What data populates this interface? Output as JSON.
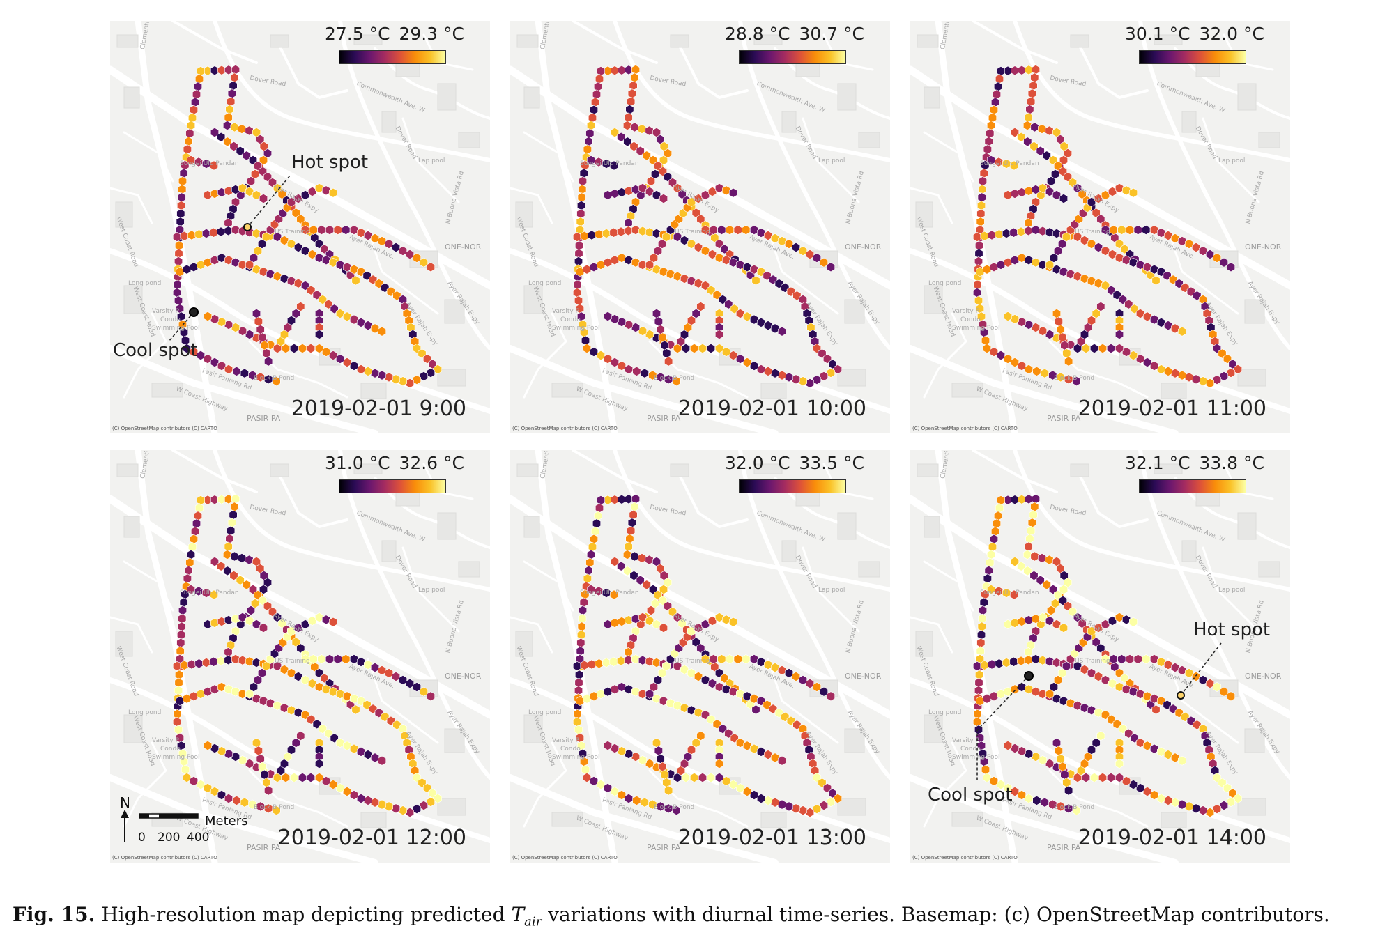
{
  "panels": [
    {
      "timestamp": "2019-02-01 9:00",
      "colorbar": {
        "min": "27.5 °C",
        "max": "29.3 °C"
      }
    },
    {
      "timestamp": "2019-02-01 10:00",
      "colorbar": {
        "min": "28.8 °C",
        "max": "30.7 °C"
      }
    },
    {
      "timestamp": "2019-02-01 11:00",
      "colorbar": {
        "min": "30.1 °C",
        "max": "32.0 °C"
      }
    },
    {
      "timestamp": "2019-02-01 12:00",
      "colorbar": {
        "min": "31.0 °C",
        "max": "32.6 °C"
      }
    },
    {
      "timestamp": "2019-02-01 13:00",
      "colorbar": {
        "min": "32.0 °C",
        "max": "33.5 °C"
      }
    },
    {
      "timestamp": "2019-02-01 14:00",
      "colorbar": {
        "min": "32.1 °C",
        "max": "33.8 °C"
      }
    }
  ],
  "annotations": {
    "hot_spot": "Hot spot",
    "cool_spot": "Cool spot"
  },
  "basemap": {
    "credit": "(C) OpenStreetMap contributors (C) CARTO",
    "streets": {
      "clementi": "Clementi",
      "dover_road": "Dover Road",
      "commonwealth": "Commonwealth Ave. W",
      "sungei": "Sungei Ulu Pandan",
      "lap_pool": "Lap pool",
      "ayer_rajah_expy": "Ayer Rajah Expy",
      "buona_vista": "N Buona Vista Rd",
      "us_training": "US Training",
      "ayer_rajah_ave": "Ayer Rajah Ave.",
      "one_north": "ONE-NOR",
      "west_coast_road": "West Coast Road",
      "long_pond": "Long pond",
      "varsity": "Varsity P",
      "condo": "Condo",
      "swimming_pool": "Swimming Pool",
      "pasir_panjang_rd": "Pasir Panjang Rd",
      "block_b_pond": "Block B Pond",
      "w_coast_highway": "W Coast Highway",
      "pasir_panjang": "PASIR PA"
    }
  },
  "scalebar": {
    "north": "N",
    "units": "Meters",
    "ticks": [
      "0",
      "200",
      "400"
    ]
  },
  "caption": {
    "label": "Fig. 15.",
    "text_before": "High-resolution map depicting predicted",
    "var_main": "T",
    "var_sub": "air",
    "text_after": "variations with diurnal time-series. Basemap: (c) OpenStreetMap contributors."
  },
  "colormap": [
    "#000004",
    "#2b0b55",
    "#6a176e",
    "#a52c60",
    "#dd513a",
    "#f98e0a",
    "#fac228",
    "#fcffa4"
  ]
}
